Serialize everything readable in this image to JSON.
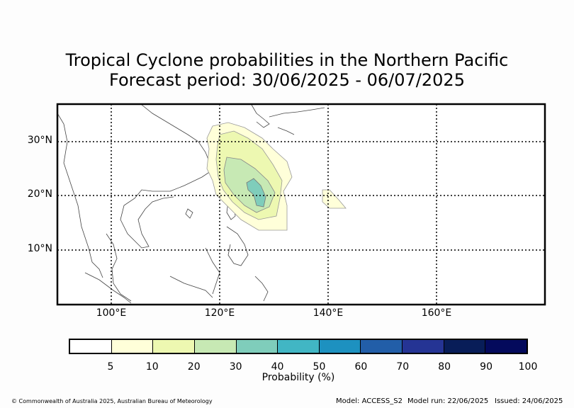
{
  "title_line1": "Tropical Cyclone probabilities in the Northern Pacific",
  "title_line2": "Forecast period: 30/06/2025 - 06/07/2025",
  "map": {
    "lat_labels": [
      "30°N",
      "20°N",
      "10°N"
    ],
    "lon_labels": [
      "100°E",
      "120°E",
      "140°E",
      "160°E"
    ],
    "extent": {
      "lon_min": 90,
      "lon_max": 180,
      "lat_min": 0,
      "lat_max": 37
    },
    "gridlines": {
      "lat": [
        30,
        20,
        10
      ],
      "lon": [
        100,
        120,
        140,
        160
      ]
    }
  },
  "colorbar": {
    "ticks": [
      "5",
      "10",
      "20",
      "30",
      "40",
      "50",
      "60",
      "70",
      "80",
      "90",
      "100"
    ],
    "label": "Probability (%)",
    "colors": [
      "#ffffff",
      "#ffffd9",
      "#edf8b1",
      "#c7e9b4",
      "#7fcdbb",
      "#41b6c4",
      "#1d91c0",
      "#225ea8",
      "#253494",
      "#081d58",
      "#040a5c"
    ]
  },
  "footer": {
    "copyright": "© Commonwealth of Australia 2025, Australian Bureau of Meteorology",
    "model": "Model: ACCESS_S2",
    "model_run": "Model run: 22/06/2025",
    "issued": "Issued: 24/06/2025"
  }
}
